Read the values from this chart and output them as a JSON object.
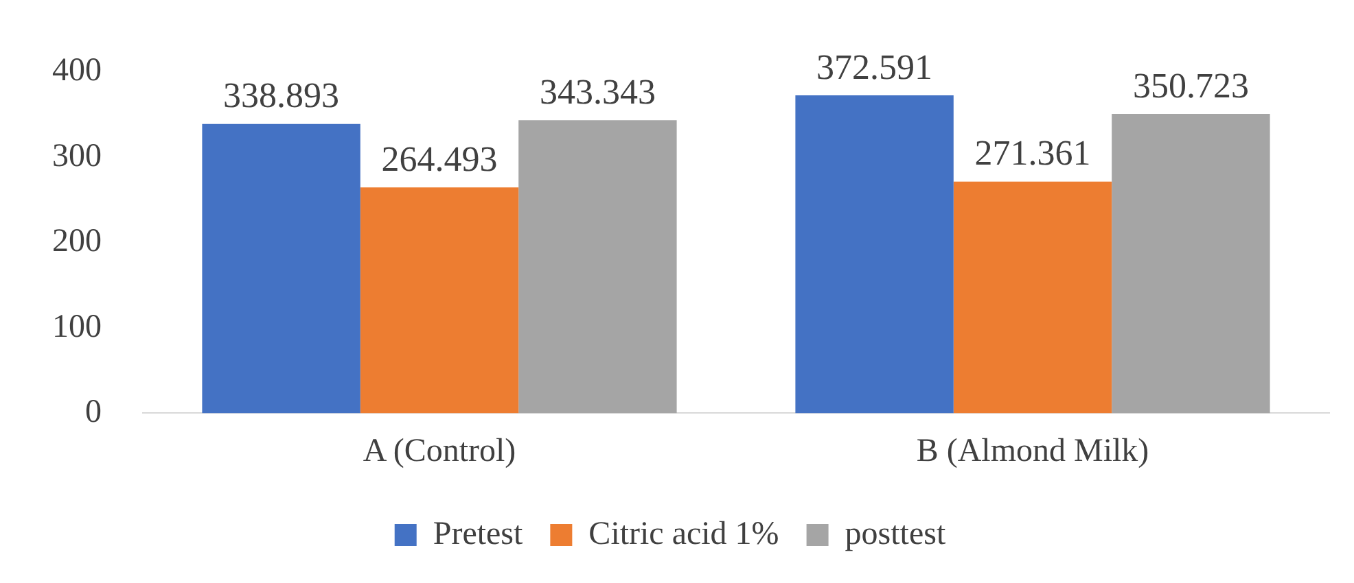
{
  "chart_data": {
    "type": "bar",
    "categories": [
      "A (Control)",
      "B (Almond Milk)"
    ],
    "series": [
      {
        "name": "Pretest",
        "color": "#4472c4",
        "values": [
          338.893,
          372.591
        ]
      },
      {
        "name": "Citric acid 1%",
        "color": "#ed7d31",
        "values": [
          264.493,
          271.361
        ]
      },
      {
        "name": "posttest",
        "color": "#a5a5a5",
        "values": [
          343.343,
          350.723
        ]
      }
    ],
    "ylim": [
      0,
      400
    ],
    "yticks": [
      0,
      100,
      200,
      300,
      400
    ],
    "grid": false,
    "legend": "bottom",
    "data_labels": true
  }
}
